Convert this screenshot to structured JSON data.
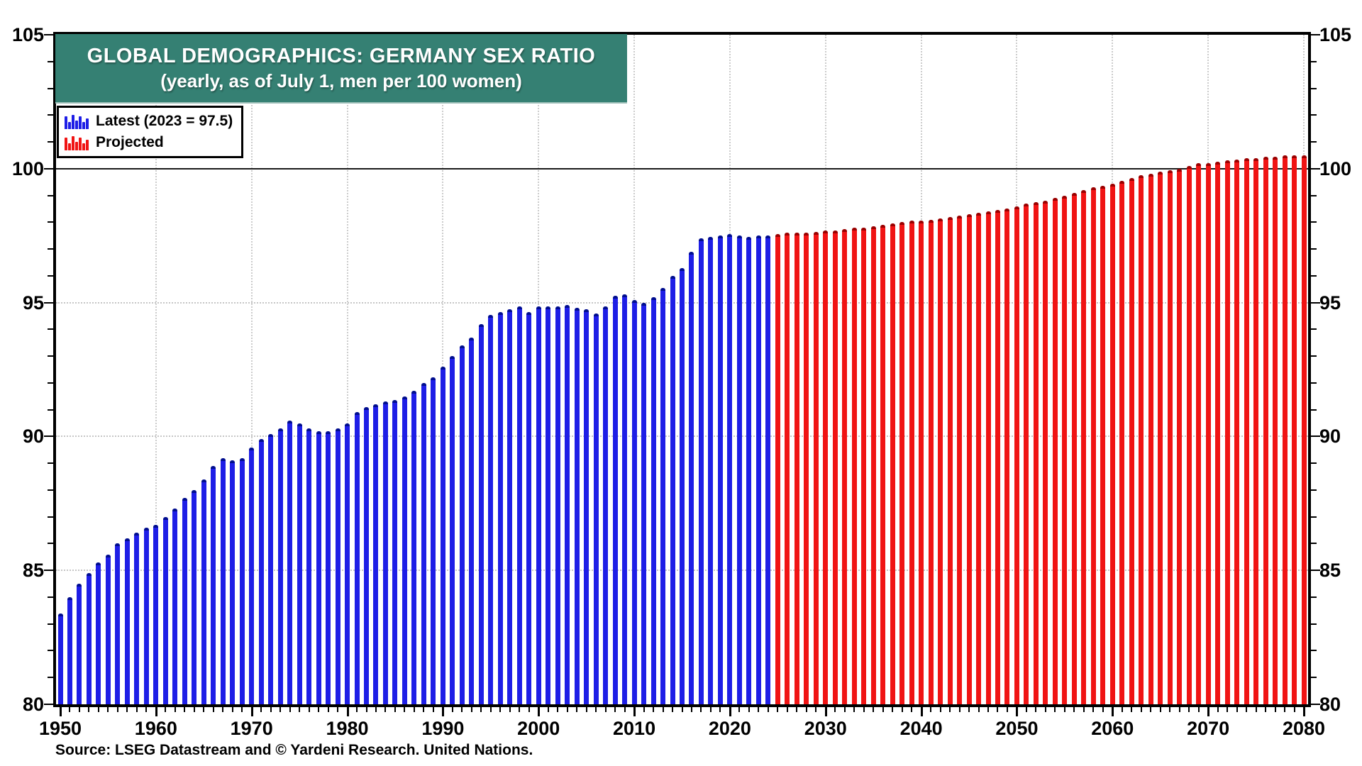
{
  "source": "Source: LSEG Datastream and © Yardeni Research. United Nations.",
  "colors": {
    "actual": "#1e1ee6",
    "actual_cap": "#000d8f",
    "projected": "#f01414",
    "projected_cap": "#9b0000",
    "title_bg": "#358073",
    "grid": "#c6c6c6",
    "hundred_line": "#1a1a1a",
    "axis": "#000000"
  },
  "chart_data": {
    "type": "bar",
    "title": "GLOBAL DEMOGRAPHICS: GERMANY SEX RATIO",
    "subtitle": "(yearly, as of July 1, men per 100 women)",
    "ylabel": "men per 100 women",
    "ylim": [
      80,
      105
    ],
    "yticks": [
      105,
      100,
      95,
      90,
      85,
      80
    ],
    "ytick_minor_step": 1,
    "x_range": [
      1950,
      2080
    ],
    "x_decade_ticks": [
      1950,
      1960,
      1970,
      1980,
      1990,
      2000,
      2010,
      2020,
      2030,
      2040,
      2050,
      2060,
      2070,
      2080
    ],
    "grid": {
      "h_dotted": [
        95,
        90,
        85
      ],
      "h_solid": [
        100
      ],
      "v_dotted": [
        1960,
        1970,
        1980,
        1990,
        2000,
        2010,
        2020,
        2030,
        2040,
        2050,
        2060,
        2070,
        2080
      ]
    },
    "legend_position": "top-left",
    "series": [
      {
        "name": "Latest (2023 = 97.5)",
        "color_key": "actual",
        "start_year": 1950,
        "end_year": 2024,
        "values": [
          83.4,
          84.0,
          84.5,
          84.9,
          85.3,
          85.6,
          86.0,
          86.2,
          86.4,
          86.6,
          86.7,
          87.0,
          87.3,
          87.7,
          88.0,
          88.4,
          88.9,
          89.2,
          89.1,
          89.2,
          89.6,
          89.9,
          90.1,
          90.3,
          90.6,
          90.5,
          90.3,
          90.2,
          90.2,
          90.3,
          90.5,
          90.9,
          91.1,
          91.2,
          91.3,
          91.35,
          91.5,
          91.7,
          92.0,
          92.2,
          92.6,
          93.0,
          93.4,
          93.7,
          94.2,
          94.55,
          94.65,
          94.75,
          94.85,
          94.65,
          94.85,
          94.85,
          94.85,
          94.9,
          94.8,
          94.75,
          94.6,
          94.85,
          95.25,
          95.3,
          95.1,
          95.0,
          95.2,
          95.55,
          96.0,
          96.3,
          96.9,
          97.4,
          97.45,
          97.5,
          97.55,
          97.5,
          97.45,
          97.5,
          97.5
        ]
      },
      {
        "name": "Projected",
        "color_key": "projected",
        "start_year": 2025,
        "end_year": 2080,
        "values": [
          97.55,
          97.6,
          97.6,
          97.6,
          97.65,
          97.7,
          97.7,
          97.75,
          97.8,
          97.8,
          97.85,
          97.9,
          97.95,
          98.0,
          98.05,
          98.05,
          98.1,
          98.15,
          98.2,
          98.25,
          98.3,
          98.35,
          98.4,
          98.45,
          98.5,
          98.6,
          98.7,
          98.75,
          98.8,
          98.9,
          99.0,
          99.1,
          99.2,
          99.3,
          99.35,
          99.45,
          99.55,
          99.65,
          99.75,
          99.8,
          99.9,
          99.95,
          100.0,
          100.1,
          100.2,
          100.2,
          100.25,
          100.3,
          100.35,
          100.4,
          100.4,
          100.45,
          100.45,
          100.5,
          100.5,
          100.5
        ]
      }
    ]
  }
}
